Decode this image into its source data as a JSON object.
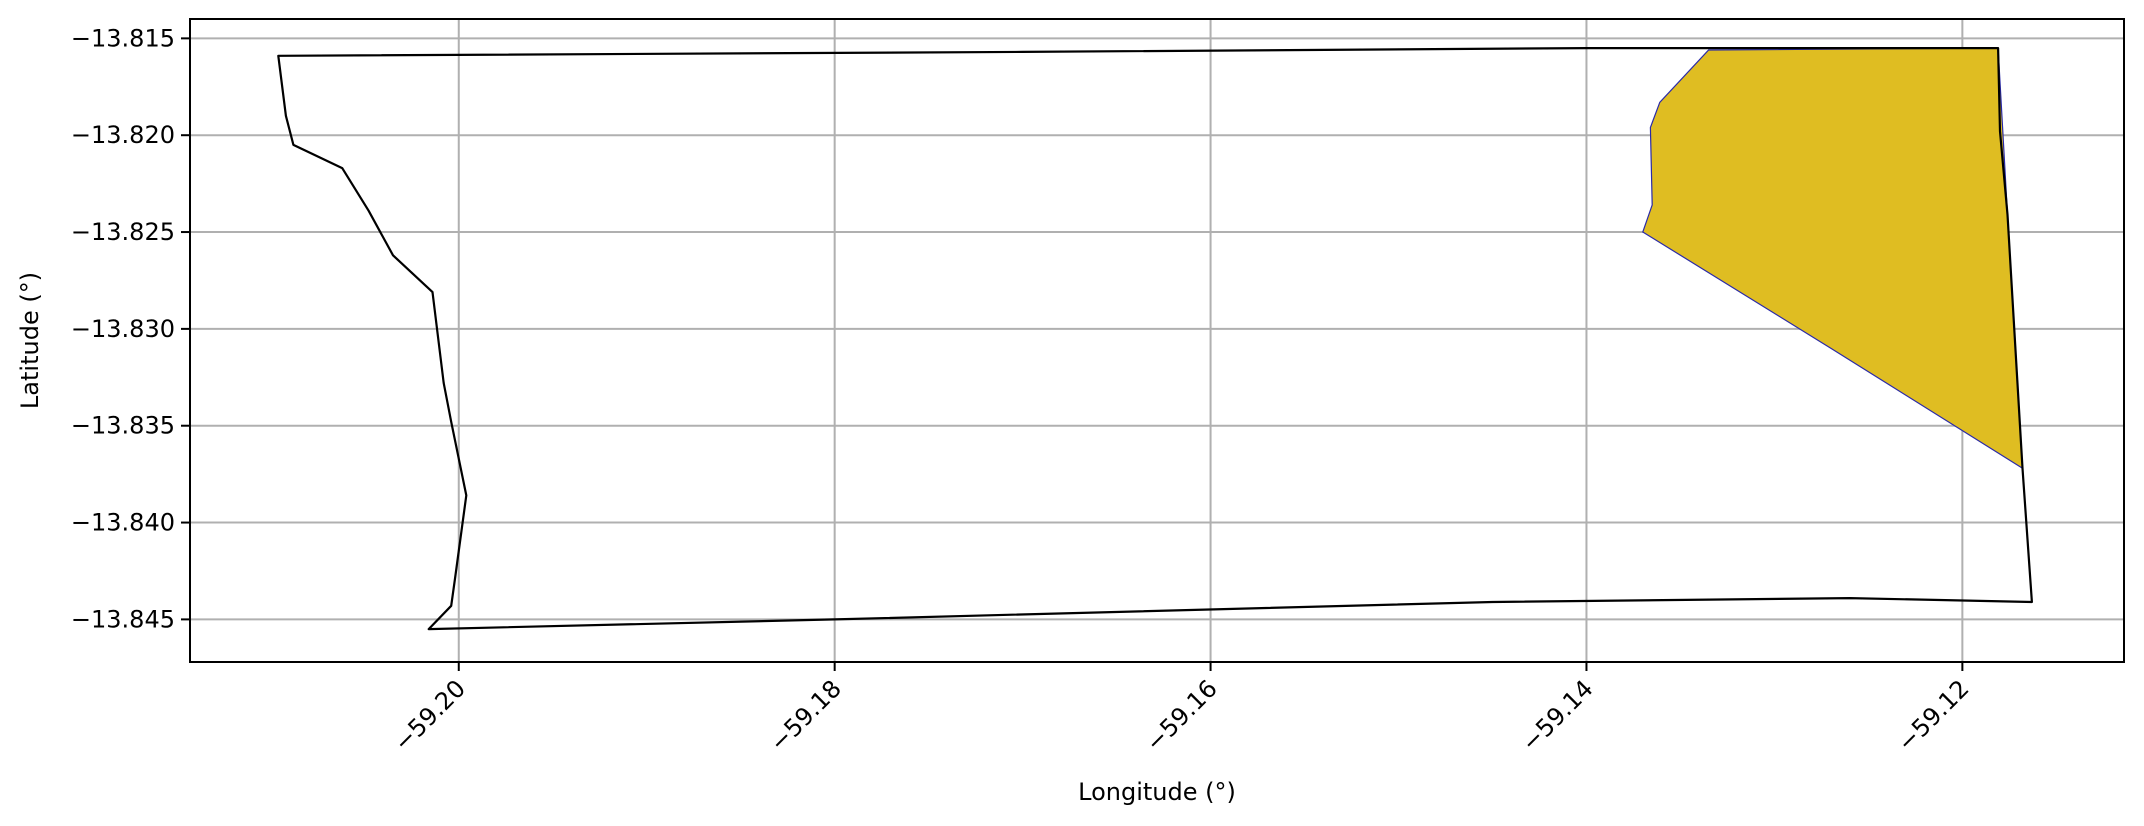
{
  "chart_data": {
    "type": "map",
    "xlabel": "Longitude (°)",
    "ylabel": "Latitude (°)",
    "xlim": [
      -59.2143,
      -59.1114
    ],
    "ylim": [
      -13.8472,
      -13.814
    ],
    "xticks": [
      -59.2,
      -59.18,
      -59.16,
      -59.14,
      -59.12
    ],
    "xtick_labels": [
      "−59.20",
      "−59.18",
      "−59.16",
      "−59.14",
      "−59.12"
    ],
    "yticks": [
      -13.815,
      -13.82,
      -13.825,
      -13.83,
      -13.835,
      -13.84,
      -13.845
    ],
    "ytick_labels": [
      "−13.815",
      "−13.820",
      "−13.825",
      "−13.830",
      "−13.835",
      "−13.840",
      "−13.845"
    ],
    "grid": true,
    "colors": {
      "boundary": "#000000",
      "region_fill": "#dfbd22",
      "region_edge": "#2a2aa8",
      "grid": "#b0b0b0"
    },
    "boundary_polygon": [
      [
        -59.2096,
        -13.8159
      ],
      [
        -59.2092,
        -13.819
      ],
      [
        -59.2088,
        -13.8205
      ],
      [
        -59.2062,
        -13.8217
      ],
      [
        -59.2048,
        -13.8239
      ],
      [
        -59.2035,
        -13.8262
      ],
      [
        -59.2014,
        -13.8281
      ],
      [
        -59.2008,
        -13.8328
      ],
      [
        -59.2004,
        -13.8348
      ],
      [
        -59.1996,
        -13.8386
      ],
      [
        -59.2002,
        -13.8429
      ],
      [
        -59.2004,
        -13.8443
      ],
      [
        -59.2016,
        -13.8455
      ],
      [
        -59.18,
        -13.845
      ],
      [
        -59.145,
        -13.8441
      ],
      [
        -59.126,
        -13.8439
      ],
      [
        -59.1163,
        -13.8441
      ],
      [
        -59.1168,
        -13.8372
      ],
      [
        -59.1176,
        -13.8241
      ],
      [
        -59.118,
        -13.8198
      ],
      [
        -59.1181,
        -13.8155
      ],
      [
        -59.14,
        -13.8155
      ],
      [
        -59.17,
        -13.8157
      ],
      [
        -59.2096,
        -13.8159
      ]
    ],
    "highlight_polygon": [
      [
        -59.1335,
        -13.8156
      ],
      [
        -59.1181,
        -13.8155
      ],
      [
        -59.1176,
        -13.8241
      ],
      [
        -59.1172,
        -13.8305
      ],
      [
        -59.1168,
        -13.8372
      ],
      [
        -59.127,
        -13.831
      ],
      [
        -59.137,
        -13.825
      ],
      [
        -59.1365,
        -13.8236
      ],
      [
        -59.1366,
        -13.8196
      ],
      [
        -59.1361,
        -13.8183
      ],
      [
        -59.1335,
        -13.8156
      ]
    ]
  }
}
